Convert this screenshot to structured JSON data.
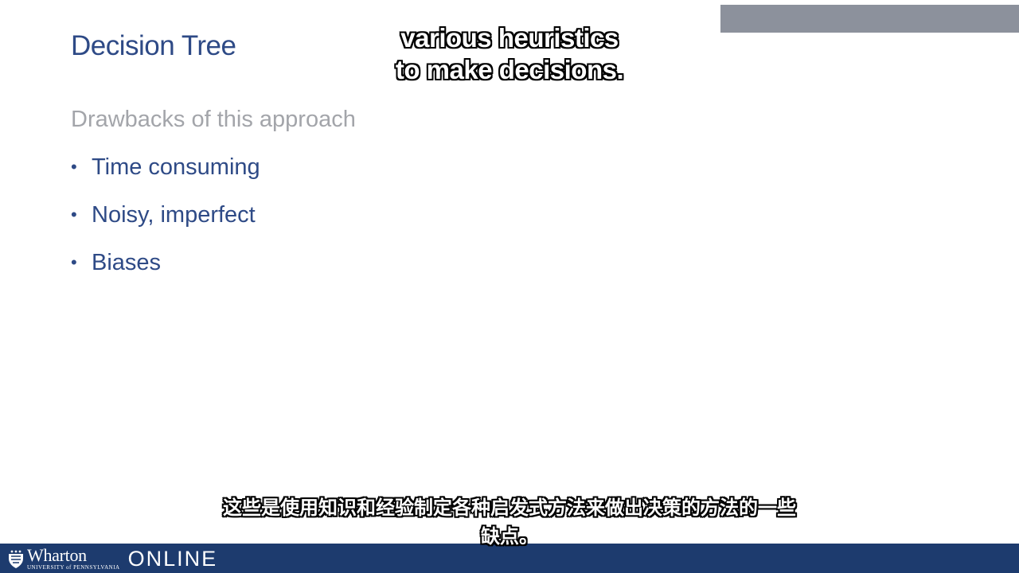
{
  "slide": {
    "title": "Decision Tree",
    "subheading": "Drawbacks of this approach",
    "bullets": [
      {
        "label": "Time consuming"
      },
      {
        "label": "Noisy, imperfect"
      },
      {
        "label": "Biases"
      }
    ],
    "bullet_glyph": "•"
  },
  "captions": {
    "english": [
      "various heuristics",
      "to make decisions."
    ],
    "chinese": [
      "这些是使用知识和经验制定各种启发式方法来做出决策的方法的一些",
      "缺点。"
    ]
  },
  "footer": {
    "logo_wharton": "Wharton",
    "logo_university": "UNIVERSITY of PENNSYLVANIA",
    "logo_online": "ONLINE",
    "logo_icon": "penn-shield-icon"
  },
  "colors": {
    "title": "#2e4a86",
    "subheading": "#a3a5aa",
    "footer": "#1d3b6e",
    "corner_bar": "#8c919c"
  }
}
